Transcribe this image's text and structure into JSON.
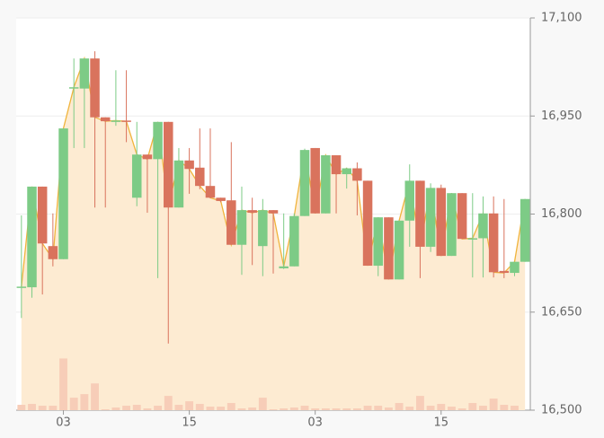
{
  "chart_data": {
    "type": "candlestick",
    "categories": [
      null,
      null,
      null,
      null,
      "03",
      null,
      null,
      null,
      null,
      null,
      null,
      null,
      null,
      null,
      null,
      null,
      "15",
      null,
      null,
      null,
      null,
      null,
      null,
      null,
      null,
      null,
      null,
      null,
      "03",
      null,
      null,
      null,
      null,
      null,
      null,
      null,
      null,
      null,
      null,
      null,
      "15",
      null,
      null,
      null,
      null,
      null,
      null,
      null,
      null
    ],
    "open": [
      16688,
      16688,
      16842,
      16751,
      16731,
      16992,
      16992,
      17038,
      16948,
      16942,
      16943,
      16825,
      16891,
      16884,
      16941,
      16810,
      16882,
      16871,
      16843,
      16825,
      16821,
      16753,
      16806,
      16751,
      16806,
      16717,
      16720,
      16797,
      16901,
      16801,
      16890,
      16861,
      16870,
      16851,
      16721,
      16795,
      16700,
      16790,
      16851,
      16750,
      16840,
      16736,
      16832,
      16762,
      16763,
      16801,
      16713,
      16710,
      16727
    ],
    "high": [
      16798,
      16842,
      16842,
      16801,
      16931,
      17038,
      17038,
      17049,
      16948,
      17020,
      17020,
      16941,
      16891,
      16941,
      16941,
      16901,
      16901,
      16931,
      16931,
      16825,
      16910,
      16842,
      16825,
      16823,
      16806,
      16801,
      16801,
      16900,
      16901,
      16890,
      16890,
      16871,
      16879,
      16851,
      16795,
      16795,
      16790,
      16876,
      16851,
      16847,
      16845,
      16832,
      16832,
      16832,
      16827,
      16827,
      16823,
      16727,
      16823
    ],
    "low": [
      16641,
      16672,
      16677,
      16720,
      16731,
      16901,
      16901,
      16810,
      16810,
      16935,
      16910,
      16812,
      16802,
      16702,
      16602,
      16810,
      16831,
      16838,
      16824,
      16818,
      16753,
      16707,
      16722,
      16705,
      16709,
      16716,
      16720,
      16797,
      16801,
      16801,
      16801,
      16839,
      16798,
      16721,
      16705,
      16700,
      16700,
      16750,
      16702,
      16742,
      16736,
      16736,
      16762,
      16703,
      16703,
      16703,
      16702,
      16705,
      16727
    ],
    "close": [
      16689,
      16842,
      16755,
      16731,
      16931,
      16994,
      17038,
      16948,
      16942,
      16943,
      16942,
      16891,
      16884,
      16941,
      16810,
      16882,
      16869,
      16843,
      16825,
      16820,
      16753,
      16806,
      16802,
      16806,
      16801,
      16720,
      16797,
      16898,
      16801,
      16890,
      16861,
      16870,
      16851,
      16721,
      16795,
      16700,
      16790,
      16851,
      16750,
      16840,
      16736,
      16832,
      16762,
      16763,
      16801,
      16711,
      16710,
      16727,
      16823
    ],
    "volume": [
      6,
      7,
      5,
      5,
      58,
      14,
      18,
      30,
      1,
      3,
      5,
      6,
      2,
      5,
      16,
      6,
      10,
      7,
      4,
      4,
      8,
      2,
      3,
      14,
      1,
      2,
      3,
      5,
      2,
      2,
      2,
      2,
      2,
      5,
      5,
      3,
      8,
      4,
      16,
      5,
      7,
      4,
      2,
      8,
      5,
      13,
      6,
      5,
      0
    ],
    "ylim": [
      16500,
      17100
    ],
    "yticks": [
      {
        "value": 16500,
        "label": "16,500"
      },
      {
        "value": 16650,
        "label": "16,650"
      },
      {
        "value": 16800,
        "label": "16,800"
      },
      {
        "value": 16950,
        "label": "16,950"
      },
      {
        "value": 17100,
        "label": "17,100"
      }
    ],
    "y2lim": [
      0,
      440
    ],
    "grid": true,
    "up_color": "#7dcb86",
    "down_color": "#d9735d",
    "line_color": "#f0b43c",
    "area_color": "#fdebd2",
    "volume_color": "#f7cdb8"
  }
}
